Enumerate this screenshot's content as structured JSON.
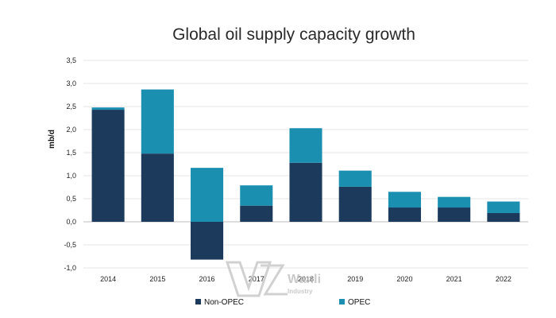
{
  "chart_data": {
    "type": "bar",
    "stacked": true,
    "title": "Global oil supply capacity growth",
    "xlabel": "",
    "ylabel": "mb/d",
    "ylim": [
      -1.0,
      3.5
    ],
    "y_ticks": [
      "3,5",
      "3,0",
      "2,5",
      "2,0",
      "1,5",
      "1,0",
      "0,5",
      "0,0",
      "-0,5",
      "-1,0"
    ],
    "y_tick_values": [
      3.5,
      3.0,
      2.5,
      2.0,
      1.5,
      1.0,
      0.5,
      0.0,
      -0.5,
      -1.0
    ],
    "categories": [
      "2014",
      "2015",
      "2016",
      "2017",
      "2018",
      "2019",
      "2020",
      "2021",
      "2022"
    ],
    "series": [
      {
        "name": "Non-OPEC",
        "color": "#1b3a5c",
        "values": [
          2.43,
          1.48,
          -0.82,
          0.35,
          1.28,
          0.76,
          0.31,
          0.31,
          0.19
        ]
      },
      {
        "name": "OPEC",
        "color": "#1a8fb0",
        "values": [
          0.05,
          1.39,
          1.17,
          0.44,
          0.75,
          0.35,
          0.34,
          0.23,
          0.25
        ]
      }
    ],
    "grid": true,
    "legend": "bottom-center"
  },
  "watermark": {
    "big_letters": "W",
    "brand": "Wanli",
    "sub": "Industry"
  }
}
